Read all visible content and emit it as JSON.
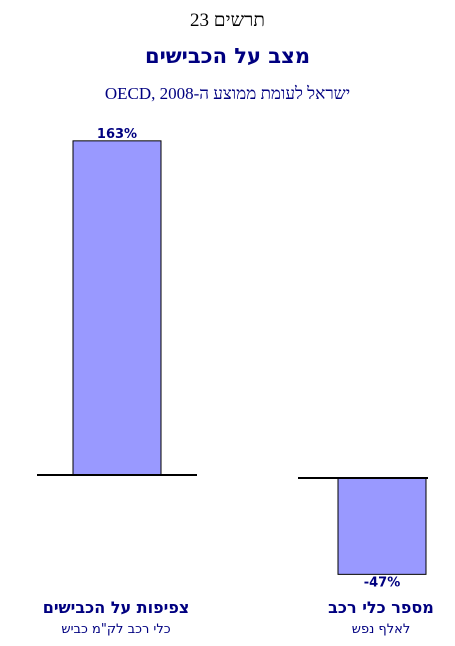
{
  "figure_label": "תרשים 23",
  "chart_data": {
    "type": "bar",
    "title": "מצב על הכבישים",
    "subtitle": "ישראל לעומת ממוצע ה-OECD, 2008",
    "categories": [
      {
        "name": "צפיפות על הכבישים",
        "sub": "כלי רכב לק\"מ כביש"
      },
      {
        "name": "מספר כלי רכב",
        "sub": "לאלף נפש"
      }
    ],
    "values": [
      163,
      -47
    ],
    "value_labels": [
      "163%",
      "-47%"
    ],
    "bar_color": "#9999ff",
    "bar_stroke": "#000000",
    "axis_color": "#000000",
    "grid": false,
    "legend": "none"
  }
}
